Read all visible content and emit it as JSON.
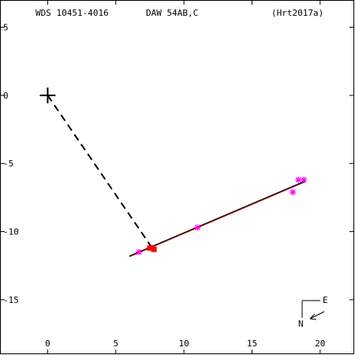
{
  "header": {
    "wds_id": "WDS 10451-4016",
    "discoverer": "DAW  54AB,C",
    "reference": "(Hrt2017a)"
  },
  "compass": {
    "east_label": "E",
    "north_label": "N"
  },
  "chart_data": {
    "type": "scatter",
    "title": "",
    "xlabel": "",
    "ylabel": "",
    "xlim": [
      -3.5,
      22.5
    ],
    "ylim": [
      -19,
      7
    ],
    "y_inverted": true,
    "grid": false,
    "x_ticks": [
      0,
      5,
      10,
      15,
      20
    ],
    "y_ticks": [
      5,
      0,
      -5,
      -10,
      -15
    ],
    "x_tick_labels": [
      "0",
      "5",
      "10",
      "15",
      "20"
    ],
    "y_tick_labels": [
      "5",
      "0",
      "-5",
      "-10",
      "-15"
    ],
    "primary_star": {
      "x": 0,
      "y": 0
    },
    "orbit_line": {
      "x": [
        6.0,
        18.9
      ],
      "y": [
        -11.8,
        -6.3
      ]
    },
    "connector_line": {
      "x": [
        0,
        7.6
      ],
      "y": [
        0,
        -11.1
      ]
    },
    "series": [
      {
        "color": "#ff00ff",
        "marker": "asterisk",
        "points": [
          {
            "x": 6.7,
            "y": -11.5
          },
          {
            "x": 7.7,
            "y": -11.2
          },
          {
            "x": 11.0,
            "y": -9.7
          },
          {
            "x": 18.0,
            "y": -7.1
          },
          {
            "x": 18.4,
            "y": -6.2
          },
          {
            "x": 18.8,
            "y": -6.2
          }
        ]
      },
      {
        "color": "#ff0000",
        "marker": "box",
        "points": [
          {
            "x": 7.5,
            "y": -11.2
          },
          {
            "x": 7.8,
            "y": -11.3
          }
        ]
      }
    ]
  }
}
